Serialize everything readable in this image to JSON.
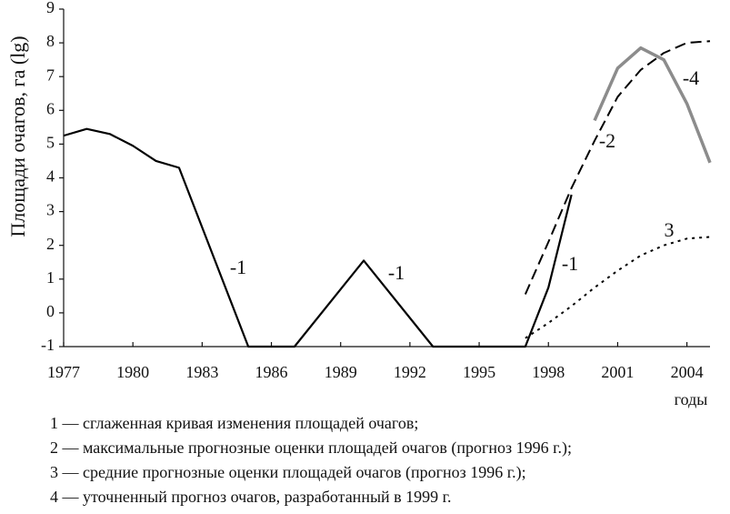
{
  "chart_data": {
    "type": "line",
    "ylabel": "Площади очагов, га (lg)",
    "xlabel": "годы",
    "xlim": [
      1977,
      2005
    ],
    "xticks": [
      1977,
      1980,
      1983,
      1986,
      1989,
      1992,
      1995,
      1998,
      2001,
      2004
    ],
    "ylim": [
      -1,
      9
    ],
    "yticks": [
      -1,
      0,
      1,
      2,
      3,
      4,
      5,
      6,
      7,
      8,
      9
    ],
    "grid": false,
    "series": [
      {
        "name": "1 — сглаженная кривая изменения площадей очагов;",
        "color": "#000000",
        "dash": "solid",
        "width": 2.2,
        "x": [
          1977,
          1978,
          1979,
          1980,
          1981,
          1982,
          1985,
          1987,
          1990,
          1993,
          1997,
          1998,
          1999
        ],
        "values": [
          5.25,
          5.45,
          5.3,
          4.95,
          4.5,
          4.3,
          -1,
          -1,
          1.55,
          -1,
          -1,
          0.75,
          3.5
        ]
      },
      {
        "name": "2 — максимальные прогнозные оценки площадей очагов (прогноз 1996 г.);",
        "color": "#000000",
        "dash": "dashed",
        "width": 2,
        "x": [
          1997,
          1998,
          1999,
          2000,
          2001,
          2002,
          2003,
          2004,
          2005
        ],
        "values": [
          0.55,
          2.1,
          3.7,
          5.1,
          6.4,
          7.2,
          7.7,
          8.0,
          8.05
        ]
      },
      {
        "name": "3 — средние прогнозные оценки площадей очагов (прогноз 1996 г.);",
        "color": "#000000",
        "dash": "dotted",
        "width": 2,
        "x": [
          1997,
          1998,
          1999,
          2000,
          2001,
          2002,
          2003,
          2004,
          2005
        ],
        "values": [
          -0.75,
          -0.3,
          0.2,
          0.75,
          1.25,
          1.7,
          2.0,
          2.2,
          2.25
        ]
      },
      {
        "name": "4 — уточненный прогноз очагов, разработанный в 1999 г.",
        "color": "#8c8c8c",
        "dash": "solid",
        "width": 3.5,
        "x": [
          2000,
          2001,
          2002,
          2003,
          2004,
          2005
        ],
        "values": [
          5.7,
          7.25,
          7.85,
          7.5,
          6.2,
          4.45
        ]
      }
    ],
    "annotations": [
      "-1",
      "-1",
      "-1",
      "-2",
      "3",
      "-4"
    ]
  }
}
